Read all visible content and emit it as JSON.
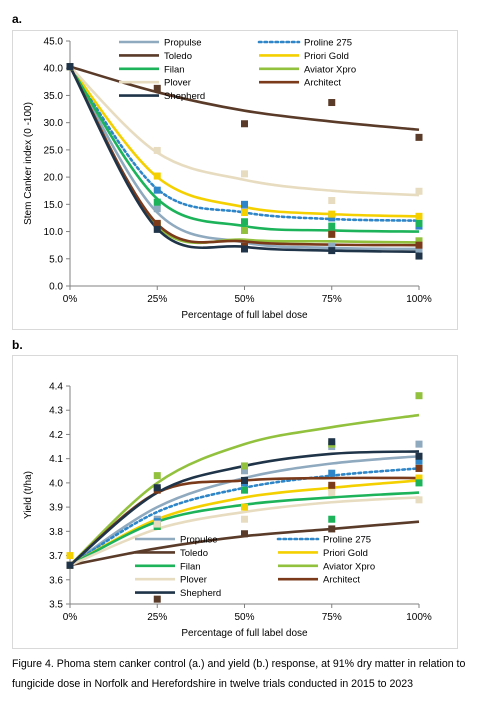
{
  "panel_labels": {
    "a": "a.",
    "b": "b."
  },
  "caption": "Figure 4. Phoma stem canker control (a.) and yield (b.) response, at 91% dry matter in relation to fungicide dose in Norfolk and Herefordshire in twelve trials conducted in 2015 to 2023",
  "chart_data": [
    {
      "type": "scatter",
      "title": "",
      "xlabel": "Percentage of full label dose",
      "ylabel": "Stem Canker index (0 -100)",
      "x_ticks": [
        "0%",
        "25%",
        "50%",
        "75%",
        "100%"
      ],
      "x": [
        0,
        25,
        50,
        75,
        100
      ],
      "ylim": [
        0,
        45
      ],
      "y_ticks": [
        "0.0",
        "5.0",
        "10.0",
        "15.0",
        "20.0",
        "25.0",
        "30.0",
        "35.0",
        "40.0",
        "45.0"
      ],
      "grid": false,
      "legend_position": "top",
      "series": [
        {
          "name": "Propulse",
          "color": "#8fa9bf",
          "dash": false,
          "points": [
            40.3,
            14.2,
            14.8,
            7.3,
            6.8
          ],
          "fit": [
            40.3,
            13.5,
            8.0,
            7.0,
            6.8
          ]
        },
        {
          "name": "Proline 275",
          "color": "#2e86c8",
          "dash": true,
          "points": [
            40.3,
            17.6,
            15.0,
            12.5,
            11.0
          ],
          "fit": [
            40.3,
            17.8,
            13.5,
            12.3,
            12.0
          ]
        },
        {
          "name": "Toledo",
          "color": "#5a3a28",
          "dash": false,
          "points": [
            40.3,
            36.3,
            29.8,
            33.7,
            27.3
          ],
          "fit": [
            40.3,
            35.6,
            32.2,
            30.2,
            28.7
          ]
        },
        {
          "name": "Priori Gold",
          "color": "#f4d000",
          "dash": false,
          "points": [
            40.3,
            20.2,
            13.5,
            13.2,
            12.8
          ],
          "fit": [
            40.3,
            20.0,
            14.5,
            13.2,
            12.8
          ]
        },
        {
          "name": "Filan",
          "color": "#1db35a",
          "dash": false,
          "points": [
            40.3,
            15.4,
            11.8,
            11.0,
            11.5
          ],
          "fit": [
            40.3,
            16.0,
            11.0,
            10.2,
            10.0
          ]
        },
        {
          "name": "Aviator Xpro",
          "color": "#92c13e",
          "dash": false,
          "points": [
            40.3,
            11.2,
            10.2,
            9.5,
            8.3
          ],
          "fit": [
            40.3,
            11.0,
            8.5,
            8.2,
            8.0
          ]
        },
        {
          "name": "Plover",
          "color": "#e8dcc0",
          "dash": false,
          "points": [
            40.3,
            24.9,
            20.6,
            15.7,
            17.4
          ],
          "fit": [
            40.3,
            24.5,
            19.5,
            17.5,
            16.7
          ]
        },
        {
          "name": "Architect",
          "color": "#7b3b1b",
          "dash": false,
          "points": [
            40.3,
            11.5,
            7.3,
            9.5,
            7.5
          ],
          "fit": [
            40.3,
            11.4,
            8.2,
            7.6,
            7.5
          ]
        },
        {
          "name": "Shepherd",
          "color": "#1f3448",
          "dash": false,
          "points": [
            40.3,
            10.4,
            6.8,
            6.5,
            5.5
          ],
          "fit": [
            40.3,
            10.5,
            7.2,
            6.5,
            6.3
          ]
        }
      ]
    },
    {
      "type": "scatter",
      "title": "",
      "xlabel": "Percentage of full label dose",
      "ylabel": "Yield (t/ha)",
      "x_ticks": [
        "0%",
        "25%",
        "50%",
        "75%",
        "100%"
      ],
      "x": [
        0,
        25,
        50,
        75,
        100
      ],
      "ylim": [
        3.5,
        4.4
      ],
      "y_ticks": [
        "3.5",
        "3.6",
        "3.7",
        "3.8",
        "3.9",
        "4.0",
        "4.1",
        "4.2",
        "4.3",
        "4.4"
      ],
      "grid": false,
      "legend_position": "bottom-right",
      "series": [
        {
          "name": "Propulse",
          "color": "#8fa9bf",
          "dash": false,
          "points": [
            3.66,
            3.85,
            4.05,
            4.15,
            4.16
          ],
          "fit": [
            3.66,
            3.9,
            4.02,
            4.08,
            4.11
          ]
        },
        {
          "name": "Proline 275",
          "color": "#2e86c8",
          "dash": true,
          "points": [
            3.66,
            3.84,
            4.0,
            4.04,
            4.09
          ],
          "fit": [
            3.66,
            3.88,
            3.98,
            4.03,
            4.06
          ]
        },
        {
          "name": "Toledo",
          "color": "#5a3a28",
          "dash": false,
          "points": [
            3.66,
            3.52,
            3.79,
            3.81,
            4.06
          ],
          "fit": [
            3.66,
            3.73,
            3.78,
            3.81,
            3.84
          ]
        },
        {
          "name": "Priori Gold",
          "color": "#f4d000",
          "dash": false,
          "points": [
            3.7,
            3.82,
            3.9,
            3.98,
            4.02
          ],
          "fit": [
            3.66,
            3.85,
            3.94,
            3.98,
            4.01
          ]
        },
        {
          "name": "Filan",
          "color": "#1db35a",
          "dash": false,
          "points": [
            3.66,
            3.82,
            3.97,
            3.85,
            4.0
          ],
          "fit": [
            3.66,
            3.84,
            3.91,
            3.94,
            3.96
          ]
        },
        {
          "name": "Aviator Xpro",
          "color": "#92c13e",
          "dash": false,
          "points": [
            3.66,
            4.03,
            4.07,
            4.16,
            4.36
          ],
          "fit": [
            3.66,
            4.0,
            4.16,
            4.23,
            4.28
          ]
        },
        {
          "name": "Plover",
          "color": "#e8dcc0",
          "dash": false,
          "points": [
            3.66,
            3.83,
            3.85,
            3.96,
            3.93
          ],
          "fit": [
            3.66,
            3.81,
            3.88,
            3.92,
            3.94
          ]
        },
        {
          "name": "Architect",
          "color": "#7b3b1b",
          "dash": false,
          "points": [
            3.66,
            3.97,
            4.01,
            3.99,
            4.06
          ],
          "fit": [
            3.66,
            3.96,
            4.01,
            4.02,
            4.02
          ]
        },
        {
          "name": "Shepherd",
          "color": "#1f3448",
          "dash": false,
          "points": [
            3.66,
            3.98,
            4.01,
            4.17,
            4.11
          ],
          "fit": [
            3.66,
            3.96,
            4.07,
            4.12,
            4.13
          ]
        }
      ]
    }
  ]
}
